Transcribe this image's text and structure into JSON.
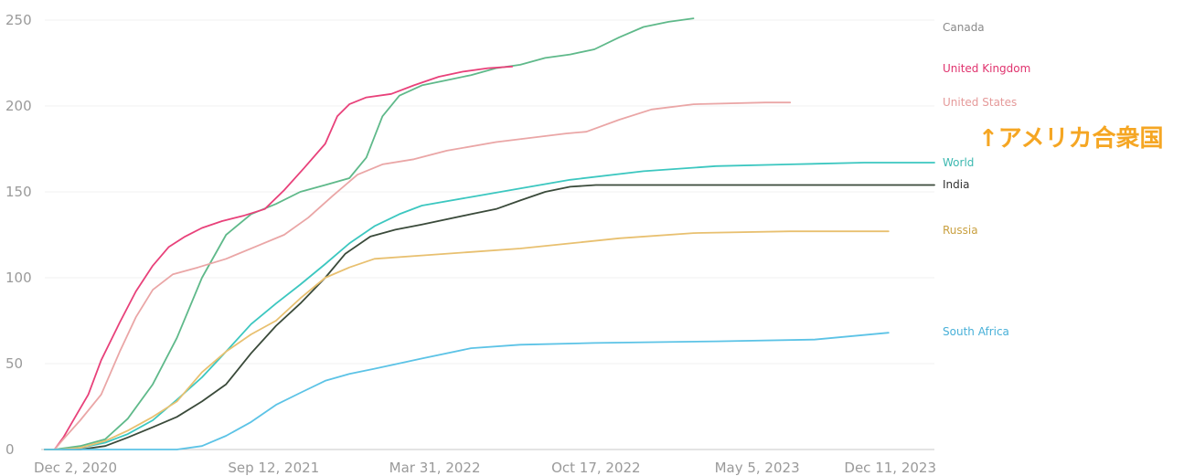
{
  "chart_data": {
    "type": "line",
    "x_type": "date",
    "xlim": [
      "2020-12-02",
      "2023-12-11"
    ],
    "ylim": [
      0,
      250
    ],
    "y_ticks": [
      0,
      50,
      100,
      150,
      200,
      250
    ],
    "y_tick_labels": [
      "0",
      "50",
      "100",
      "150",
      "200",
      "250"
    ],
    "x_ticks": [
      "2020-12-02",
      "2021-09-12",
      "2022-03-31",
      "2022-10-17",
      "2023-05-05",
      "2023-12-11"
    ],
    "x_tick_labels": [
      "Dec 2, 2020",
      "Sep 12, 2021",
      "Mar 31, 2022",
      "Oct 17, 2022",
      "May 5, 2023",
      "Dec 11, 2023"
    ],
    "grid": true,
    "legend": "direct labels at right",
    "annotation": {
      "text": "↑アメリカ合衆国",
      "color": "#f5a623",
      "anchor_series": "United States"
    },
    "series": [
      {
        "name": "Canada",
        "color": "#5fb98a",
        "label_color": "#8a8a8a",
        "points": [
          [
            "2020-12-02",
            0
          ],
          [
            "2020-12-14",
            0
          ],
          [
            "2021-01-15",
            2
          ],
          [
            "2021-02-15",
            6
          ],
          [
            "2021-03-15",
            18
          ],
          [
            "2021-04-15",
            38
          ],
          [
            "2021-05-15",
            65
          ],
          [
            "2021-06-15",
            100
          ],
          [
            "2021-07-15",
            125
          ],
          [
            "2021-08-15",
            137
          ],
          [
            "2021-09-15",
            143
          ],
          [
            "2021-10-15",
            150
          ],
          [
            "2021-11-15",
            154
          ],
          [
            "2021-12-15",
            158
          ],
          [
            "2022-01-05",
            170
          ],
          [
            "2022-01-25",
            194
          ],
          [
            "2022-02-15",
            206
          ],
          [
            "2022-03-15",
            212
          ],
          [
            "2022-04-15",
            215
          ],
          [
            "2022-05-15",
            218
          ],
          [
            "2022-06-15",
            222
          ],
          [
            "2022-07-15",
            224
          ],
          [
            "2022-08-15",
            228
          ],
          [
            "2022-09-15",
            230
          ],
          [
            "2022-10-15",
            233
          ],
          [
            "2022-11-15",
            240
          ],
          [
            "2022-12-15",
            246
          ],
          [
            "2023-01-15",
            249
          ],
          [
            "2023-02-15",
            251
          ]
        ]
      },
      {
        "name": "United Kingdom",
        "color": "#e8417a",
        "label_color": "#e0336e",
        "points": [
          [
            "2020-12-02",
            0
          ],
          [
            "2020-12-14",
            0
          ],
          [
            "2020-12-25",
            7
          ],
          [
            "2021-01-10",
            20
          ],
          [
            "2021-01-25",
            32
          ],
          [
            "2021-02-10",
            52
          ],
          [
            "2021-03-05",
            74
          ],
          [
            "2021-03-25",
            92
          ],
          [
            "2021-04-15",
            107
          ],
          [
            "2021-05-05",
            118
          ],
          [
            "2021-05-25",
            124
          ],
          [
            "2021-06-15",
            129
          ],
          [
            "2021-07-10",
            133
          ],
          [
            "2021-08-05",
            136
          ],
          [
            "2021-09-01",
            140
          ],
          [
            "2021-09-25",
            151
          ],
          [
            "2021-10-20",
            164
          ],
          [
            "2021-11-15",
            178
          ],
          [
            "2021-11-30",
            194
          ],
          [
            "2021-12-15",
            201
          ],
          [
            "2022-01-05",
            205
          ],
          [
            "2022-02-05",
            207
          ],
          [
            "2022-03-05",
            212
          ],
          [
            "2022-04-05",
            217
          ],
          [
            "2022-05-05",
            220
          ],
          [
            "2022-06-05",
            222
          ],
          [
            "2022-07-05",
            223
          ]
        ]
      },
      {
        "name": "United States",
        "color": "#eaa6a6",
        "label_color": "#e59a9a",
        "points": [
          [
            "2020-12-02",
            0
          ],
          [
            "2020-12-14",
            0
          ],
          [
            "2020-12-25",
            6
          ],
          [
            "2021-01-15",
            17
          ],
          [
            "2021-02-10",
            32
          ],
          [
            "2021-03-05",
            57
          ],
          [
            "2021-03-25",
            77
          ],
          [
            "2021-04-15",
            93
          ],
          [
            "2021-05-10",
            102
          ],
          [
            "2021-06-10",
            106
          ],
          [
            "2021-07-15",
            111
          ],
          [
            "2021-08-20",
            118
          ],
          [
            "2021-09-25",
            125
          ],
          [
            "2021-10-25",
            135
          ],
          [
            "2021-11-25",
            148
          ],
          [
            "2021-12-25",
            160
          ],
          [
            "2022-01-25",
            166
          ],
          [
            "2022-03-05",
            169
          ],
          [
            "2022-04-15",
            174
          ],
          [
            "2022-06-15",
            179
          ],
          [
            "2022-09-10",
            184
          ],
          [
            "2022-10-05",
            185
          ],
          [
            "2022-11-15",
            192
          ],
          [
            "2022-12-25",
            198
          ],
          [
            "2023-02-15",
            201
          ],
          [
            "2023-05-15",
            202
          ],
          [
            "2023-06-15",
            202
          ]
        ]
      },
      {
        "name": "World",
        "color": "#3cc7c0",
        "label_color": "#3cb8b0",
        "points": [
          [
            "2020-12-02",
            0
          ],
          [
            "2020-12-20",
            0
          ],
          [
            "2021-01-15",
            1
          ],
          [
            "2021-02-15",
            4
          ],
          [
            "2021-03-15",
            9
          ],
          [
            "2021-04-15",
            17
          ],
          [
            "2021-05-15",
            29
          ],
          [
            "2021-06-15",
            42
          ],
          [
            "2021-07-15",
            57
          ],
          [
            "2021-08-15",
            73
          ],
          [
            "2021-09-15",
            85
          ],
          [
            "2021-10-15",
            96
          ],
          [
            "2021-11-15",
            108
          ],
          [
            "2021-12-15",
            120
          ],
          [
            "2022-01-15",
            130
          ],
          [
            "2022-02-15",
            137
          ],
          [
            "2022-03-15",
            142
          ],
          [
            "2022-05-15",
            147
          ],
          [
            "2022-07-15",
            152
          ],
          [
            "2022-09-15",
            157
          ],
          [
            "2022-12-15",
            162
          ],
          [
            "2023-03-15",
            165
          ],
          [
            "2023-06-15",
            166
          ],
          [
            "2023-09-15",
            167
          ],
          [
            "2023-12-11",
            167
          ]
        ]
      },
      {
        "name": "India",
        "color": "#3a4a3a",
        "label_color": "#333333",
        "points": [
          [
            "2020-12-02",
            0
          ],
          [
            "2021-01-15",
            0
          ],
          [
            "2021-02-15",
            2
          ],
          [
            "2021-03-15",
            7
          ],
          [
            "2021-04-15",
            13
          ],
          [
            "2021-05-15",
            19
          ],
          [
            "2021-06-15",
            28
          ],
          [
            "2021-07-15",
            38
          ],
          [
            "2021-08-15",
            56
          ],
          [
            "2021-09-15",
            72
          ],
          [
            "2021-10-15",
            85
          ],
          [
            "2021-11-15",
            100
          ],
          [
            "2021-12-10",
            114
          ],
          [
            "2022-01-10",
            124
          ],
          [
            "2022-02-10",
            128
          ],
          [
            "2022-03-15",
            131
          ],
          [
            "2022-05-15",
            137
          ],
          [
            "2022-06-15",
            140
          ],
          [
            "2022-07-15",
            145
          ],
          [
            "2022-08-15",
            150
          ],
          [
            "2022-09-15",
            153
          ],
          [
            "2022-10-17",
            154
          ],
          [
            "2023-05-05",
            154
          ],
          [
            "2023-12-11",
            154
          ]
        ]
      },
      {
        "name": "Russia",
        "color": "#e8c070",
        "label_color": "#c9a040",
        "points": [
          [
            "2020-12-02",
            0
          ],
          [
            "2020-12-20",
            0
          ],
          [
            "2021-01-15",
            1
          ],
          [
            "2021-02-15",
            5
          ],
          [
            "2021-03-15",
            11
          ],
          [
            "2021-04-15",
            19
          ],
          [
            "2021-05-15",
            28
          ],
          [
            "2021-06-15",
            45
          ],
          [
            "2021-07-15",
            57
          ],
          [
            "2021-08-15",
            67
          ],
          [
            "2021-09-15",
            75
          ],
          [
            "2021-10-15",
            88
          ],
          [
            "2021-11-15",
            100
          ],
          [
            "2021-12-15",
            106
          ],
          [
            "2022-01-15",
            111
          ],
          [
            "2022-03-15",
            113
          ],
          [
            "2022-05-15",
            115
          ],
          [
            "2022-07-15",
            117
          ],
          [
            "2022-09-15",
            120
          ],
          [
            "2022-11-15",
            123
          ],
          [
            "2023-02-15",
            126
          ],
          [
            "2023-06-15",
            127
          ],
          [
            "2023-10-15",
            127
          ]
        ]
      },
      {
        "name": "South Africa",
        "color": "#5cc3e6",
        "label_color": "#48b0d8",
        "points": [
          [
            "2020-12-02",
            0
          ],
          [
            "2021-05-15",
            0
          ],
          [
            "2021-06-15",
            2
          ],
          [
            "2021-07-15",
            8
          ],
          [
            "2021-08-15",
            16
          ],
          [
            "2021-09-15",
            26
          ],
          [
            "2021-10-15",
            33
          ],
          [
            "2021-11-15",
            40
          ],
          [
            "2021-12-15",
            44
          ],
          [
            "2022-01-15",
            47
          ],
          [
            "2022-03-15",
            53
          ],
          [
            "2022-05-15",
            59
          ],
          [
            "2022-07-15",
            61
          ],
          [
            "2022-10-15",
            62
          ],
          [
            "2023-03-15",
            63
          ],
          [
            "2023-07-15",
            64
          ],
          [
            "2023-10-15",
            68
          ]
        ]
      }
    ]
  }
}
